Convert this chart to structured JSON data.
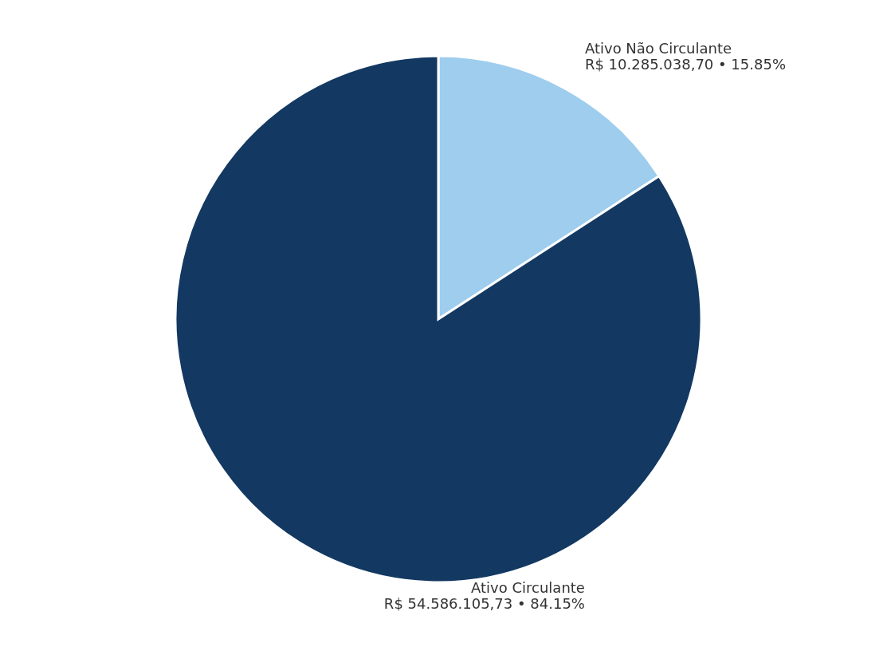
{
  "chart_data": {
    "type": "pie",
    "categories": [
      "Ativo Não Circulante",
      "Ativo Circulante"
    ],
    "values": [
      10285038.7,
      54586105.73
    ],
    "colors": [
      "#9ecdee",
      "#133862"
    ],
    "value_labels": [
      "R$ 10.285.038,70 • 15.85%",
      "R$ 54.586.105,73 • 84.15%"
    ]
  }
}
